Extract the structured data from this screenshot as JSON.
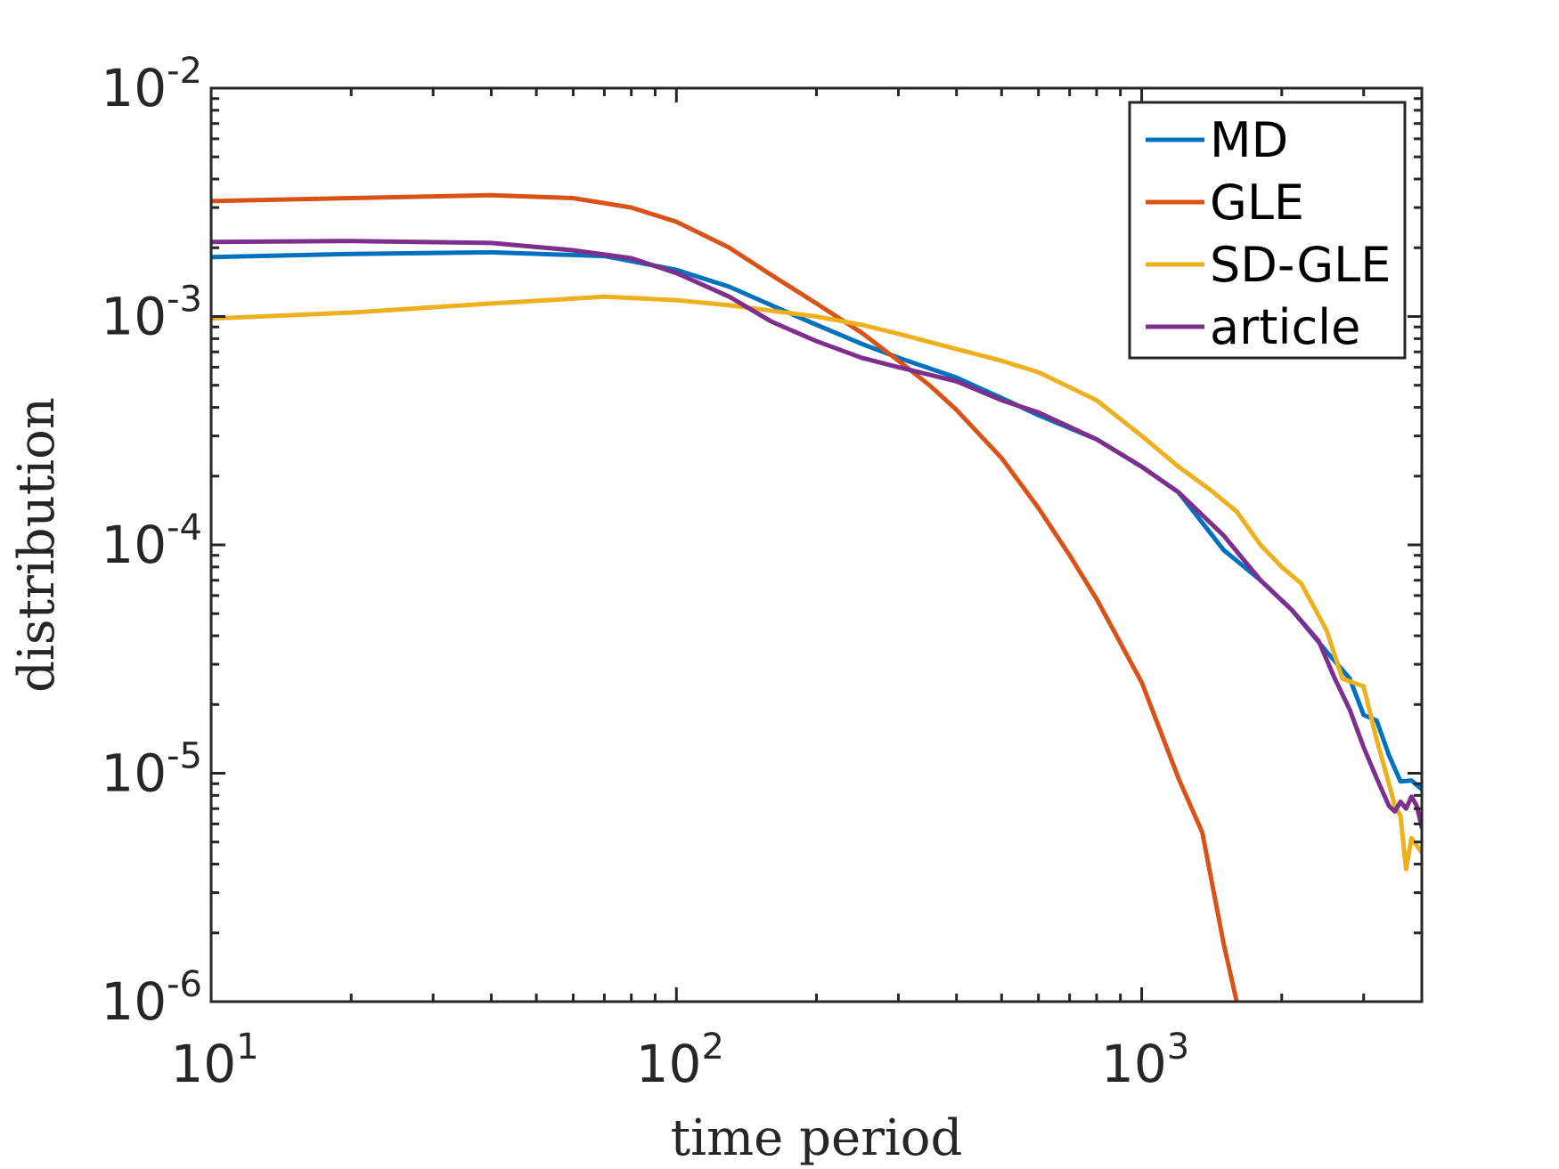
{
  "chart_data": {
    "type": "line",
    "xscale": "log",
    "yscale": "log",
    "xlim": [
      10,
      4000
    ],
    "ylim": [
      1e-06,
      0.01
    ],
    "xlabel": "time period",
    "ylabel": "distribution",
    "grid": false,
    "legend_position": "top-right",
    "x_ticks": [
      {
        "value": 10,
        "base": "10",
        "exp": "1"
      },
      {
        "value": 100,
        "base": "10",
        "exp": "2"
      },
      {
        "value": 1000,
        "base": "10",
        "exp": "3"
      }
    ],
    "y_ticks": [
      {
        "value": 0.01,
        "base": "10",
        "exp": "-2"
      },
      {
        "value": 0.001,
        "base": "10",
        "exp": "-3"
      },
      {
        "value": 0.0001,
        "base": "10",
        "exp": "-4"
      },
      {
        "value": 1e-05,
        "base": "10",
        "exp": "-5"
      },
      {
        "value": 1e-06,
        "base": "10",
        "exp": "-6"
      }
    ],
    "series": [
      {
        "name": "MD",
        "color": "#0072BD",
        "x": [
          10,
          20,
          40,
          70,
          100,
          130,
          160,
          200,
          250,
          300,
          400,
          500,
          600,
          800,
          1000,
          1200,
          1500,
          1800,
          2100,
          2500,
          2800,
          3000,
          3200,
          3400,
          3600,
          3800,
          4000
        ],
        "y": [
          0.00182,
          0.00188,
          0.00191,
          0.00184,
          0.0016,
          0.00135,
          0.00112,
          0.00092,
          0.00076,
          0.00066,
          0.00054,
          0.00044,
          0.00037,
          0.00029,
          0.00022,
          0.00017,
          9.5e-05,
          7e-05,
          5.2e-05,
          3.4e-05,
          2.6e-05,
          1.8e-05,
          1.7e-05,
          1.2e-05,
          9.2e-06,
          9.3e-06,
          8.5e-06
        ]
      },
      {
        "name": "GLE",
        "color": "#D95319",
        "x": [
          10,
          20,
          40,
          60,
          80,
          100,
          130,
          160,
          200,
          250,
          300,
          350,
          400,
          500,
          600,
          700,
          800,
          1000,
          1200,
          1350,
          1500,
          1600
        ],
        "y": [
          0.0032,
          0.0033,
          0.0034,
          0.0033,
          0.003,
          0.0026,
          0.002,
          0.00152,
          0.00114,
          0.00085,
          0.00064,
          0.0005,
          0.00039,
          0.00024,
          0.000145,
          9e-05,
          5.8e-05,
          2.5e-05,
          9.5e-06,
          5.5e-06,
          1.8e-06,
          1e-06
        ]
      },
      {
        "name": "SD-GLE",
        "color": "#EDB120",
        "x": [
          10,
          20,
          40,
          70,
          100,
          130,
          160,
          200,
          250,
          300,
          400,
          500,
          600,
          800,
          1000,
          1200,
          1400,
          1600,
          1800,
          2000,
          2200,
          2500,
          2700,
          3000,
          3200,
          3400,
          3500,
          3600,
          3700,
          3800,
          4000
        ],
        "y": [
          0.00098,
          0.00104,
          0.00114,
          0.00122,
          0.00118,
          0.00112,
          0.00106,
          0.001,
          0.00092,
          0.00084,
          0.00072,
          0.00064,
          0.00057,
          0.00043,
          0.0003,
          0.00022,
          0.000175,
          0.00014,
          0.0001,
          8e-05,
          6.8e-05,
          4.2e-05,
          2.6e-05,
          2.4e-05,
          1.4e-05,
          9e-06,
          7.2e-06,
          6.5e-06,
          3.8e-06,
          5.2e-06,
          4.5e-06
        ]
      },
      {
        "name": "article",
        "color": "#7E2F8E",
        "x": [
          10,
          20,
          40,
          60,
          80,
          100,
          130,
          160,
          200,
          250,
          300,
          400,
          500,
          600,
          800,
          1000,
          1200,
          1500,
          1800,
          2100,
          2400,
          2600,
          2800,
          3000,
          3200,
          3400,
          3500,
          3600,
          3700,
          3800,
          3900,
          4000
        ],
        "y": [
          0.00212,
          0.00214,
          0.0021,
          0.00195,
          0.0018,
          0.00155,
          0.00122,
          0.00095,
          0.00078,
          0.00066,
          0.0006,
          0.00052,
          0.00043,
          0.00038,
          0.00029,
          0.00022,
          0.00017,
          0.00011,
          7e-05,
          5.2e-05,
          3.8e-05,
          2.6e-05,
          1.9e-05,
          1.3e-05,
          9.5e-06,
          7.2e-06,
          6.8e-06,
          7.5e-06,
          7e-06,
          7.9e-06,
          7.2e-06,
          5.8e-06
        ]
      }
    ]
  }
}
